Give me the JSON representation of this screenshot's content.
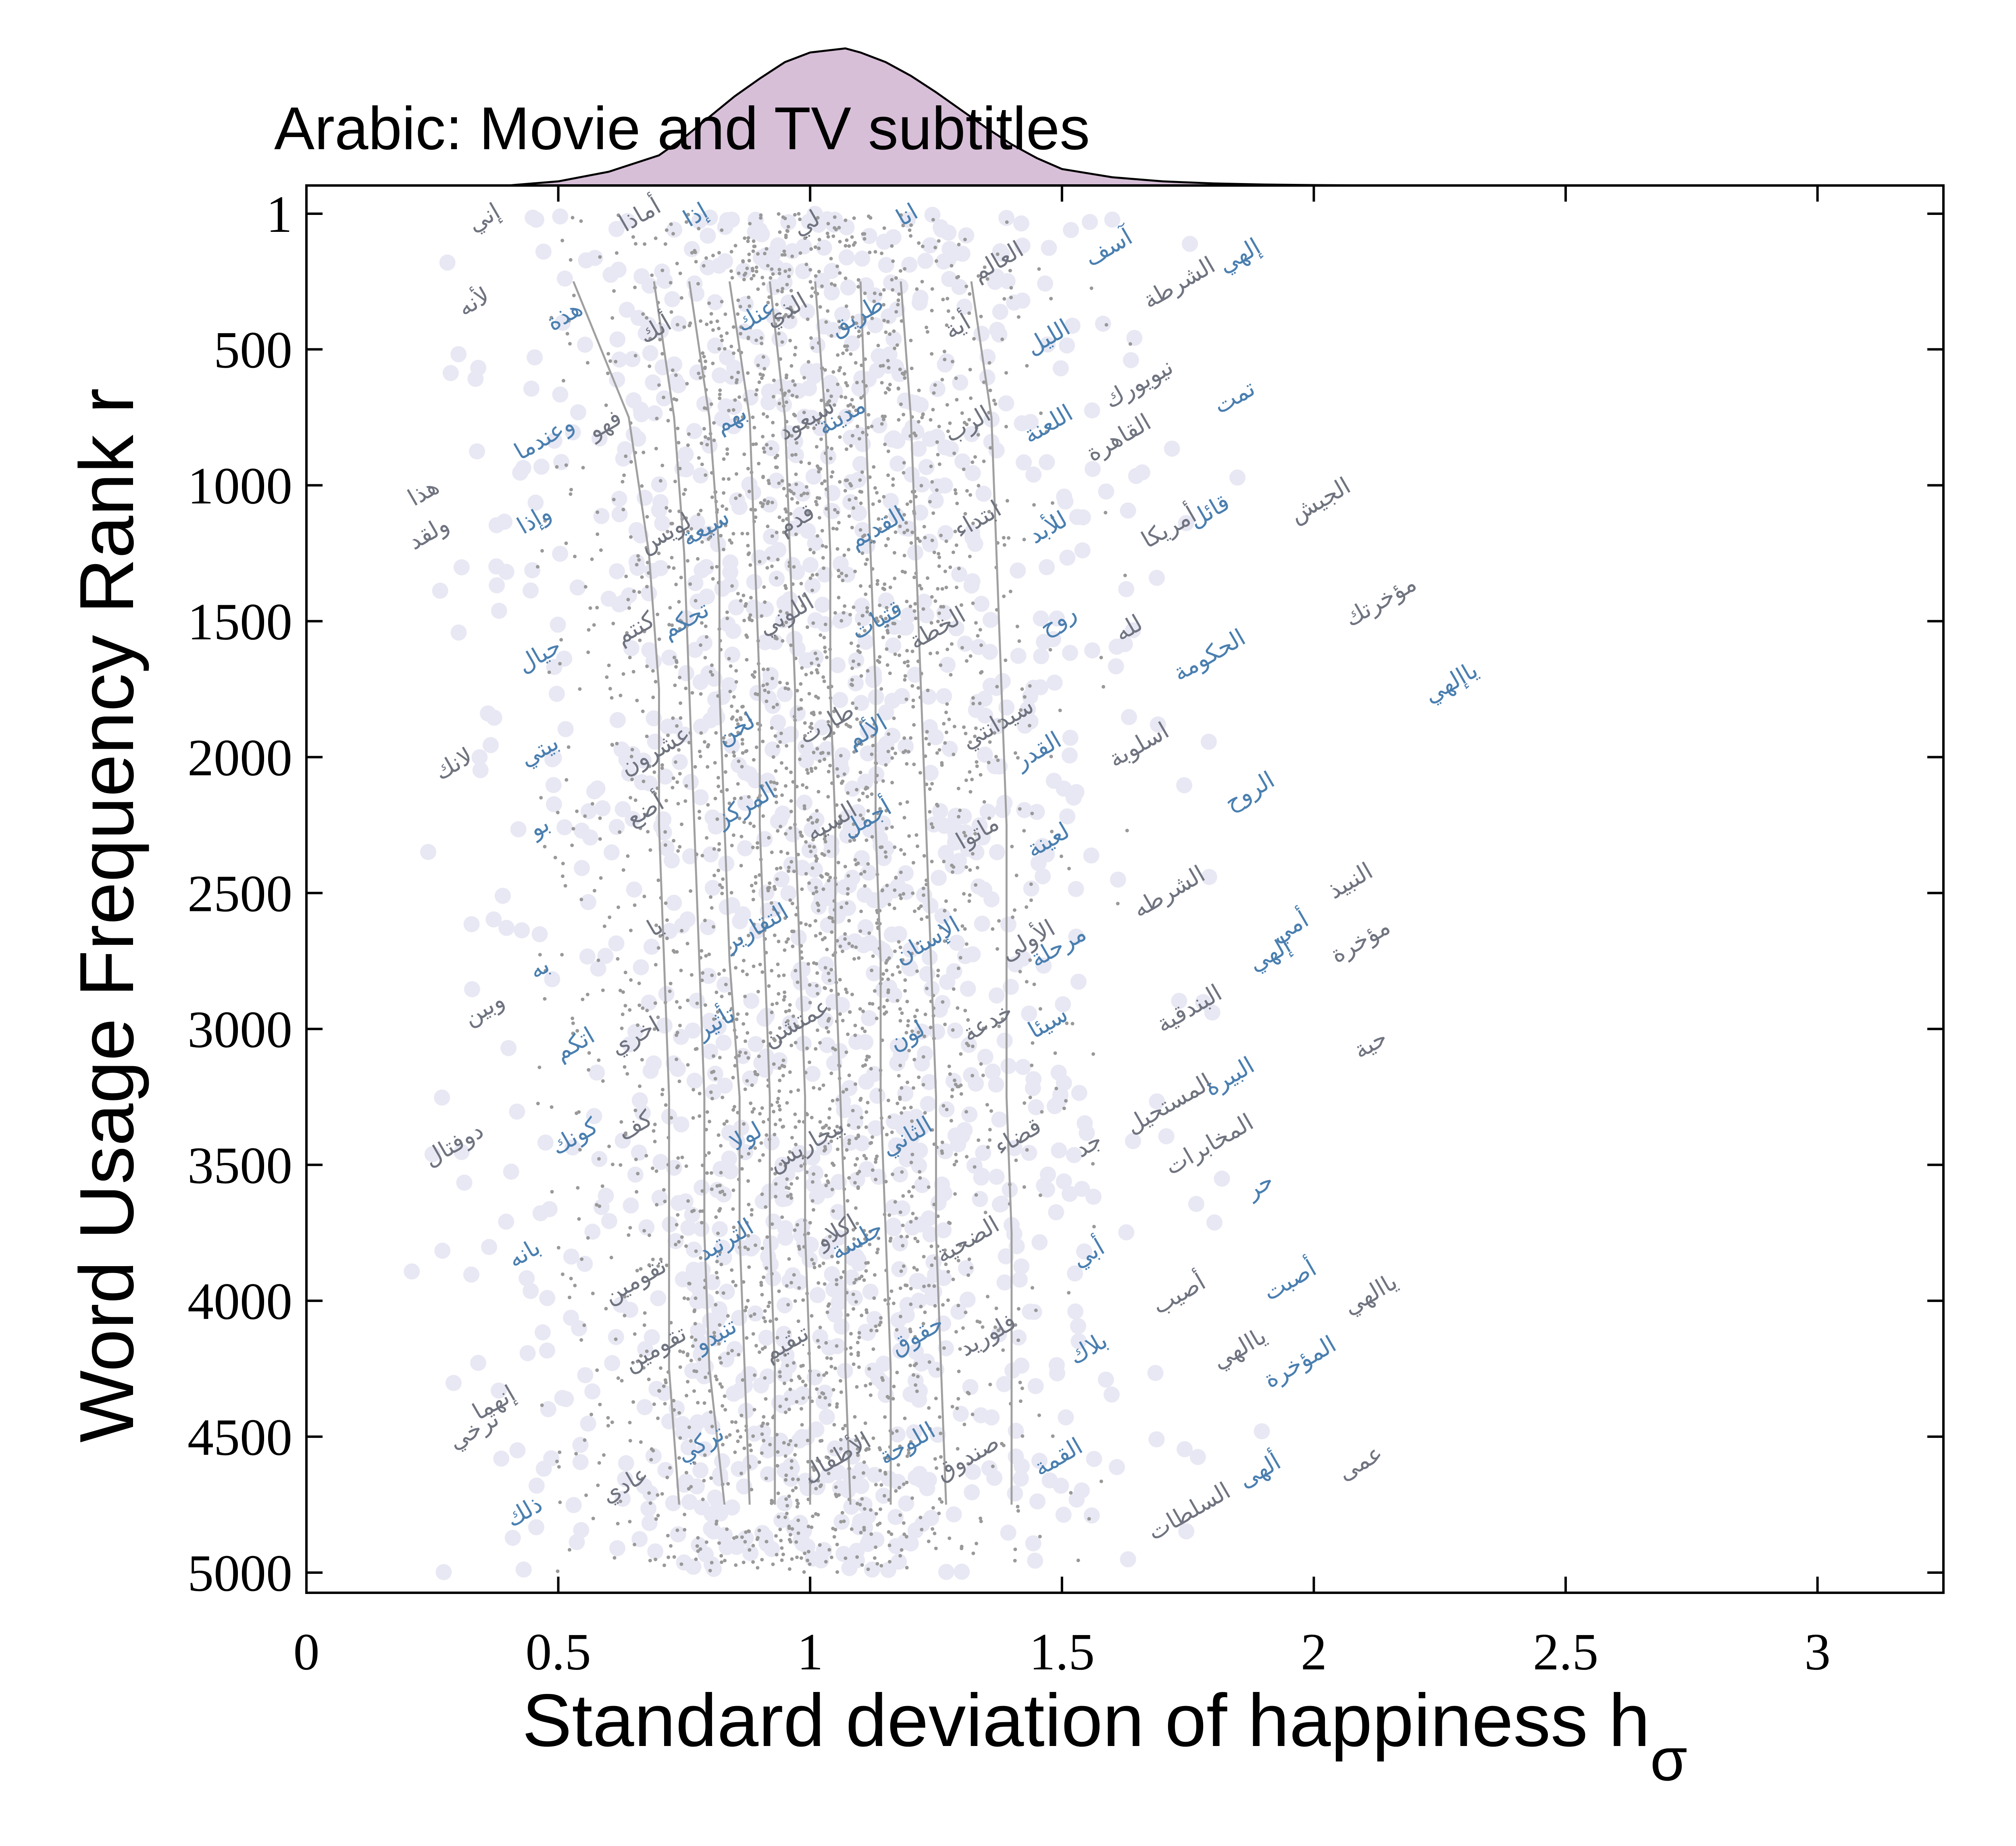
{
  "chart_data": {
    "type": "scatter",
    "title": "Arabic: Movie and TV subtitles",
    "xlabel": "Standard deviation of happiness h",
    "xlabel_subscript": "σ",
    "ylabel": "Word Usage Frequency Rank r",
    "xlim": [
      0,
      3.25
    ],
    "ylim": [
      1,
      5000
    ],
    "y_inverted": true,
    "grid": false,
    "xticks": [
      0,
      0.5,
      1,
      1.5,
      2,
      2.5,
      3
    ],
    "xtick_labels": [
      "0",
      "0.5",
      "1",
      "1.5",
      "2",
      "2.5",
      "3"
    ],
    "yticks": [
      1,
      500,
      1000,
      1500,
      2000,
      2500,
      3000,
      3500,
      4000,
      4500,
      5000
    ],
    "ytick_labels": [
      "1",
      "500",
      "1000",
      "1500",
      "2000",
      "2500",
      "3000",
      "3500",
      "4000",
      "4500",
      "5000"
    ],
    "colors": {
      "axis": "#000000",
      "background_points": "#e8e8f4",
      "gray_points": "#999999",
      "contours": "#a0a0a0",
      "word_blue": "#4a7fb0",
      "word_gray": "#707480",
      "density_fill": "#d8bfd8",
      "density_stroke": "#000000"
    },
    "density_curve": {
      "description": "marginal distribution of h_sigma",
      "x": [
        0.4,
        0.5,
        0.6,
        0.7,
        0.75,
        0.8,
        0.85,
        0.9,
        0.95,
        1.0,
        1.07,
        1.1,
        1.15,
        1.2,
        1.25,
        1.3,
        1.35,
        1.4,
        1.45,
        1.5,
        1.6,
        1.7,
        1.8,
        1.9,
        2.0,
        2.15
      ],
      "y": [
        0.0,
        0.03,
        0.1,
        0.22,
        0.35,
        0.5,
        0.65,
        0.78,
        0.9,
        0.97,
        1.0,
        0.97,
        0.9,
        0.8,
        0.68,
        0.55,
        0.42,
        0.3,
        0.2,
        0.12,
        0.06,
        0.03,
        0.015,
        0.007,
        0.003,
        0.0
      ]
    },
    "contours": {
      "description": "deciles of h_sigma as a function of rank",
      "ranks": [
        250,
        750,
        1250,
        1750,
        2250,
        2750,
        3250,
        3750,
        4250,
        4750
      ],
      "series": [
        {
          "name": "10%",
          "values": [
            0.53,
            0.64,
            0.68,
            0.7,
            0.7,
            0.71,
            0.72,
            0.72,
            0.72,
            0.74
          ]
        },
        {
          "name": "20%",
          "values": [
            0.69,
            0.73,
            0.75,
            0.76,
            0.77,
            0.78,
            0.79,
            0.79,
            0.8,
            0.83
          ]
        },
        {
          "name": "30%",
          "values": [
            0.76,
            0.8,
            0.82,
            0.82,
            0.83,
            0.84,
            0.86,
            0.86,
            0.87,
            0.88
          ]
        },
        {
          "name": "40%",
          "values": [
            0.84,
            0.88,
            0.89,
            0.9,
            0.9,
            0.91,
            0.92,
            0.92,
            0.93,
            0.93
          ]
        },
        {
          "name": "50%",
          "values": [
            0.92,
            0.95,
            0.96,
            0.97,
            0.97,
            0.98,
            0.99,
            0.99,
            1.0,
            1.0
          ]
        },
        {
          "name": "60%",
          "values": [
            1.01,
            1.03,
            1.04,
            1.04,
            1.05,
            1.05,
            1.06,
            1.07,
            1.07,
            1.08
          ]
        },
        {
          "name": "70%",
          "values": [
            1.1,
            1.11,
            1.12,
            1.13,
            1.13,
            1.14,
            1.14,
            1.15,
            1.16,
            1.16
          ]
        },
        {
          "name": "80%",
          "values": [
            1.18,
            1.2,
            1.21,
            1.22,
            1.23,
            1.24,
            1.25,
            1.25,
            1.26,
            1.27
          ]
        },
        {
          "name": "90%",
          "values": [
            1.32,
            1.36,
            1.37,
            1.38,
            1.39,
            1.39,
            1.39,
            1.4,
            1.4,
            1.4
          ]
        }
      ]
    },
    "words": [
      {
        "text": "إني",
        "x": 0.36,
        "r": 40,
        "color": "gray"
      },
      {
        "text": "أماذا",
        "x": 0.67,
        "r": 30,
        "color": "gray"
      },
      {
        "text": "إذا",
        "x": 0.78,
        "r": 30,
        "color": "blue"
      },
      {
        "text": "لي",
        "x": 1.0,
        "r": 60,
        "color": "gray"
      },
      {
        "text": "انا",
        "x": 1.2,
        "r": 30,
        "color": "blue"
      },
      {
        "text": "آسف",
        "x": 1.6,
        "r": 150,
        "color": "blue"
      },
      {
        "text": "العالم",
        "x": 1.38,
        "r": 200,
        "color": "gray"
      },
      {
        "text": "إلهي",
        "x": 1.86,
        "r": 180,
        "color": "blue"
      },
      {
        "text": "الشرطة",
        "x": 1.74,
        "r": 280,
        "color": "gray"
      },
      {
        "text": "لأنه",
        "x": 0.34,
        "r": 350,
        "color": "gray"
      },
      {
        "text": "هذة",
        "x": 0.52,
        "r": 400,
        "color": "blue"
      },
      {
        "text": "أنك",
        "x": 0.7,
        "r": 450,
        "color": "gray"
      },
      {
        "text": "عنك",
        "x": 0.9,
        "r": 400,
        "color": "blue"
      },
      {
        "text": "الذي",
        "x": 0.96,
        "r": 380,
        "color": "gray"
      },
      {
        "text": "طريق",
        "x": 1.1,
        "r": 400,
        "color": "blue"
      },
      {
        "text": "أية",
        "x": 1.3,
        "r": 440,
        "color": "gray"
      },
      {
        "text": "الليل",
        "x": 1.48,
        "r": 480,
        "color": "blue"
      },
      {
        "text": "نيويورك",
        "x": 1.66,
        "r": 650,
        "color": "gray"
      },
      {
        "text": "تمت",
        "x": 1.85,
        "r": 700,
        "color": "blue"
      },
      {
        "text": "وعندما",
        "x": 0.48,
        "r": 850,
        "color": "blue"
      },
      {
        "text": "فهو",
        "x": 0.6,
        "r": 800,
        "color": "gray"
      },
      {
        "text": "بهم",
        "x": 0.85,
        "r": 780,
        "color": "blue"
      },
      {
        "text": "سيعود",
        "x": 1.0,
        "r": 780,
        "color": "gray"
      },
      {
        "text": "مدينة",
        "x": 1.07,
        "r": 770,
        "color": "blue"
      },
      {
        "text": "الرب",
        "x": 1.32,
        "r": 800,
        "color": "gray"
      },
      {
        "text": "اللعنة",
        "x": 1.48,
        "r": 800,
        "color": "blue"
      },
      {
        "text": "القاهرة",
        "x": 1.62,
        "r": 850,
        "color": "gray"
      },
      {
        "text": "هذا",
        "x": 0.24,
        "r": 1050,
        "color": "gray"
      },
      {
        "text": "ولقد",
        "x": 0.25,
        "r": 1200,
        "color": "gray"
      },
      {
        "text": "وإذا",
        "x": 0.46,
        "r": 1150,
        "color": "blue"
      },
      {
        "text": "لويس",
        "x": 0.72,
        "r": 1200,
        "color": "gray"
      },
      {
        "text": "سيعة",
        "x": 0.8,
        "r": 1180,
        "color": "blue"
      },
      {
        "text": "قدم",
        "x": 0.98,
        "r": 1150,
        "color": "gray"
      },
      {
        "text": "القديم",
        "x": 1.14,
        "r": 1180,
        "color": "blue"
      },
      {
        "text": "ابتداء",
        "x": 1.34,
        "r": 1150,
        "color": "gray"
      },
      {
        "text": "للأبد",
        "x": 1.48,
        "r": 1180,
        "color": "blue"
      },
      {
        "text": "قائل",
        "x": 1.8,
        "r": 1120,
        "color": "blue"
      },
      {
        "text": "أمريكا",
        "x": 1.72,
        "r": 1180,
        "color": "gray"
      },
      {
        "text": "الجيش",
        "x": 2.02,
        "r": 1080,
        "color": "gray"
      },
      {
        "text": "مؤخرتك",
        "x": 2.14,
        "r": 1450,
        "color": "gray"
      },
      {
        "text": "حيال",
        "x": 0.47,
        "r": 1650,
        "color": "blue"
      },
      {
        "text": "كنتم",
        "x": 0.66,
        "r": 1550,
        "color": "gray"
      },
      {
        "text": "تحكم",
        "x": 0.76,
        "r": 1520,
        "color": "blue"
      },
      {
        "text": "اللوني",
        "x": 0.96,
        "r": 1500,
        "color": "gray"
      },
      {
        "text": "قتيات",
        "x": 1.14,
        "r": 1520,
        "color": "blue"
      },
      {
        "text": "الخطة",
        "x": 1.26,
        "r": 1550,
        "color": "gray"
      },
      {
        "text": "روح",
        "x": 1.5,
        "r": 1520,
        "color": "blue"
      },
      {
        "text": "لله",
        "x": 1.64,
        "r": 1550,
        "color": "gray"
      },
      {
        "text": "الحكومة",
        "x": 1.8,
        "r": 1650,
        "color": "blue"
      },
      {
        "text": "ياإلهي",
        "x": 2.28,
        "r": 1750,
        "color": "blue"
      },
      {
        "text": "لانك",
        "x": 0.3,
        "r": 2050,
        "color": "gray"
      },
      {
        "text": "بيتي",
        "x": 0.47,
        "r": 2000,
        "color": "blue"
      },
      {
        "text": "عشرون",
        "x": 0.7,
        "r": 2000,
        "color": "gray"
      },
      {
        "text": "لحن",
        "x": 0.86,
        "r": 1920,
        "color": "blue"
      },
      {
        "text": "طارت",
        "x": 1.04,
        "r": 1900,
        "color": "gray"
      },
      {
        "text": "الألم",
        "x": 1.12,
        "r": 1930,
        "color": "blue"
      },
      {
        "text": "سيدانتي",
        "x": 1.38,
        "r": 1900,
        "color": "gray"
      },
      {
        "text": "القدر",
        "x": 1.46,
        "r": 2000,
        "color": "blue"
      },
      {
        "text": "اسلوبة",
        "x": 1.66,
        "r": 1980,
        "color": "gray"
      },
      {
        "text": "الروح",
        "x": 1.88,
        "r": 2150,
        "color": "blue"
      },
      {
        "text": "بو",
        "x": 0.47,
        "r": 2280,
        "color": "blue"
      },
      {
        "text": "أضع",
        "x": 0.68,
        "r": 2220,
        "color": "gray"
      },
      {
        "text": "المركز",
        "x": 0.88,
        "r": 2200,
        "color": "blue"
      },
      {
        "text": "السيه",
        "x": 1.05,
        "r": 2260,
        "color": "gray"
      },
      {
        "text": "أجمل",
        "x": 1.12,
        "r": 2250,
        "color": "blue"
      },
      {
        "text": "ماتوا",
        "x": 1.34,
        "r": 2300,
        "color": "gray"
      },
      {
        "text": "لعينة",
        "x": 1.48,
        "r": 2330,
        "color": "blue"
      },
      {
        "text": "النبيذ",
        "x": 2.08,
        "r": 2480,
        "color": "gray"
      },
      {
        "text": "الشرطه",
        "x": 1.72,
        "r": 2520,
        "color": "gray"
      },
      {
        "text": "يا",
        "x": 0.7,
        "r": 2650,
        "color": "gray"
      },
      {
        "text": "التقارير",
        "x": 0.9,
        "r": 2650,
        "color": "blue"
      },
      {
        "text": "الإستان",
        "x": 1.24,
        "r": 2700,
        "color": "blue"
      },
      {
        "text": "الأولى",
        "x": 1.44,
        "r": 2700,
        "color": "gray"
      },
      {
        "text": "مرحلة",
        "x": 1.5,
        "r": 2720,
        "color": "blue"
      },
      {
        "text": "أمي",
        "x": 1.96,
        "r": 2650,
        "color": "blue"
      },
      {
        "text": "إلهي",
        "x": 1.92,
        "r": 2750,
        "color": "blue"
      },
      {
        "text": "مؤخرة",
        "x": 2.1,
        "r": 2700,
        "color": "gray"
      },
      {
        "text": "به",
        "x": 0.47,
        "r": 2800,
        "color": "blue"
      },
      {
        "text": "وبين",
        "x": 0.36,
        "r": 2950,
        "color": "gray"
      },
      {
        "text": "اتكم",
        "x": 0.54,
        "r": 3080,
        "color": "blue"
      },
      {
        "text": "اخري",
        "x": 0.66,
        "r": 3050,
        "color": "gray"
      },
      {
        "text": "تأثير",
        "x": 0.82,
        "r": 3000,
        "color": "blue"
      },
      {
        "text": "عمتشن",
        "x": 0.98,
        "r": 3000,
        "color": "gray"
      },
      {
        "text": "لون",
        "x": 1.2,
        "r": 3050,
        "color": "blue"
      },
      {
        "text": "خدعة",
        "x": 1.36,
        "r": 3000,
        "color": "gray"
      },
      {
        "text": "سيئا",
        "x": 1.48,
        "r": 3000,
        "color": "blue"
      },
      {
        "text": "البندقية",
        "x": 1.76,
        "r": 2950,
        "color": "gray"
      },
      {
        "text": "حية",
        "x": 2.12,
        "r": 3080,
        "color": "gray"
      },
      {
        "text": "دوفتال",
        "x": 0.3,
        "r": 3450,
        "color": "gray"
      },
      {
        "text": "كف",
        "x": 0.66,
        "r": 3380,
        "color": "gray"
      },
      {
        "text": "كونك",
        "x": 0.54,
        "r": 3420,
        "color": "blue"
      },
      {
        "text": "لولا",
        "x": 0.88,
        "r": 3420,
        "color": "blue"
      },
      {
        "text": "بيجاريس",
        "x": 1.0,
        "r": 3450,
        "color": "gray"
      },
      {
        "text": "الثاني",
        "x": 1.2,
        "r": 3420,
        "color": "blue"
      },
      {
        "text": "قضاء",
        "x": 1.42,
        "r": 3420,
        "color": "gray"
      },
      {
        "text": "جد",
        "x": 1.56,
        "r": 3450,
        "color": "gray"
      },
      {
        "text": "المستحيل",
        "x": 1.72,
        "r": 3300,
        "color": "gray"
      },
      {
        "text": "البيرة",
        "x": 1.84,
        "r": 3200,
        "color": "blue"
      },
      {
        "text": "المخابرات",
        "x": 1.8,
        "r": 3450,
        "color": "gray"
      },
      {
        "text": "حر",
        "x": 1.9,
        "r": 3600,
        "color": "blue"
      },
      {
        "text": "بانه",
        "x": 0.44,
        "r": 3850,
        "color": "blue"
      },
      {
        "text": "تقومين",
        "x": 0.66,
        "r": 3950,
        "color": "gray"
      },
      {
        "text": "الترتيد",
        "x": 0.84,
        "r": 3800,
        "color": "blue"
      },
      {
        "text": "اكلاو",
        "x": 1.06,
        "r": 3770,
        "color": "gray"
      },
      {
        "text": "جلسة",
        "x": 1.1,
        "r": 3800,
        "color": "blue"
      },
      {
        "text": "الضحية",
        "x": 1.32,
        "r": 3800,
        "color": "gray"
      },
      {
        "text": "أبي",
        "x": 1.56,
        "r": 3850,
        "color": "blue"
      },
      {
        "text": "أصيب",
        "x": 1.74,
        "r": 4000,
        "color": "gray"
      },
      {
        "text": "أصبت",
        "x": 1.96,
        "r": 3950,
        "color": "blue"
      },
      {
        "text": "ياالهي",
        "x": 2.12,
        "r": 4000,
        "color": "gray"
      },
      {
        "text": "تقومين",
        "x": 0.7,
        "r": 4200,
        "color": "gray"
      },
      {
        "text": "تنبدو",
        "x": 0.82,
        "r": 4150,
        "color": "blue"
      },
      {
        "text": "تبقيم",
        "x": 0.96,
        "r": 4180,
        "color": "gray"
      },
      {
        "text": "حقوق",
        "x": 1.22,
        "r": 4150,
        "color": "blue"
      },
      {
        "text": "فلوريد",
        "x": 1.36,
        "r": 4150,
        "color": "gray"
      },
      {
        "text": "بلاك",
        "x": 1.56,
        "r": 4200,
        "color": "blue"
      },
      {
        "text": "ياالهي",
        "x": 1.86,
        "r": 4200,
        "color": "gray"
      },
      {
        "text": "المؤخرة",
        "x": 1.98,
        "r": 4250,
        "color": "blue"
      },
      {
        "text": "إنهما",
        "x": 0.38,
        "r": 4400,
        "color": "gray"
      },
      {
        "text": "ترخي",
        "x": 0.34,
        "r": 4500,
        "color": "gray"
      },
      {
        "text": "تركي",
        "x": 0.79,
        "r": 4550,
        "color": "blue"
      },
      {
        "text": "الأطفال",
        "x": 1.06,
        "r": 4600,
        "color": "gray"
      },
      {
        "text": "اللوحة",
        "x": 1.2,
        "r": 4550,
        "color": "blue"
      },
      {
        "text": "صندوق",
        "x": 1.32,
        "r": 4600,
        "color": "gray"
      },
      {
        "text": "القمة",
        "x": 1.5,
        "r": 4600,
        "color": "blue"
      },
      {
        "text": "ذلك",
        "x": 0.44,
        "r": 4800,
        "color": "blue"
      },
      {
        "text": "عادي",
        "x": 0.64,
        "r": 4700,
        "color": "gray"
      },
      {
        "text": "السلطات",
        "x": 1.76,
        "r": 4800,
        "color": "gray"
      },
      {
        "text": "ألهى",
        "x": 1.9,
        "r": 4650,
        "color": "blue"
      },
      {
        "text": "عمى",
        "x": 2.1,
        "r": 4620,
        "color": "gray"
      }
    ]
  }
}
